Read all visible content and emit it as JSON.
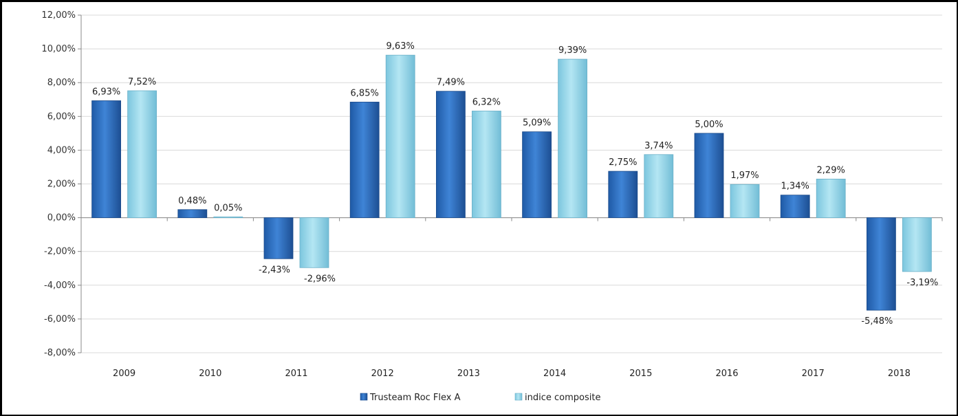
{
  "chart_data": {
    "type": "bar",
    "categories": [
      "2009",
      "2010",
      "2011",
      "2012",
      "2013",
      "2014",
      "2015",
      "2016",
      "2017",
      "2018"
    ],
    "series": [
      {
        "name": "Trusteam Roc Flex A",
        "color": "#2e6fbf",
        "values": [
          6.93,
          0.48,
          -2.43,
          6.85,
          7.49,
          5.09,
          2.75,
          5.0,
          1.34,
          -5.48
        ],
        "labels": [
          "6,93%",
          "0,48%",
          "-2,43%",
          "6,85%",
          "7,49%",
          "5,09%",
          "2,75%",
          "5,00%",
          "1,34%",
          "-5,48%"
        ]
      },
      {
        "name": "indice composite",
        "color": "#8fd3e8",
        "values": [
          7.52,
          0.05,
          -2.96,
          9.63,
          6.32,
          9.39,
          3.74,
          1.97,
          2.29,
          -3.19
        ],
        "labels": [
          "7,52%",
          "0,05%",
          "-2,96%",
          "9,63%",
          "6,32%",
          "9,39%",
          "3,74%",
          "1,97%",
          "2,29%",
          "-3,19%"
        ]
      }
    ],
    "ylim": [
      -8,
      12
    ],
    "yticks": [
      12,
      10,
      8,
      6,
      4,
      2,
      0,
      -2,
      -4,
      -6,
      -8
    ],
    "ytick_labels": [
      "12,00%",
      "10,00%",
      "8,00%",
      "6,00%",
      "4,00%",
      "2,00%",
      "0,00%",
      "-2,00%",
      "-4,00%",
      "-6,00%",
      "-8,00%"
    ],
    "grid": true,
    "legend_position": "bottom"
  }
}
